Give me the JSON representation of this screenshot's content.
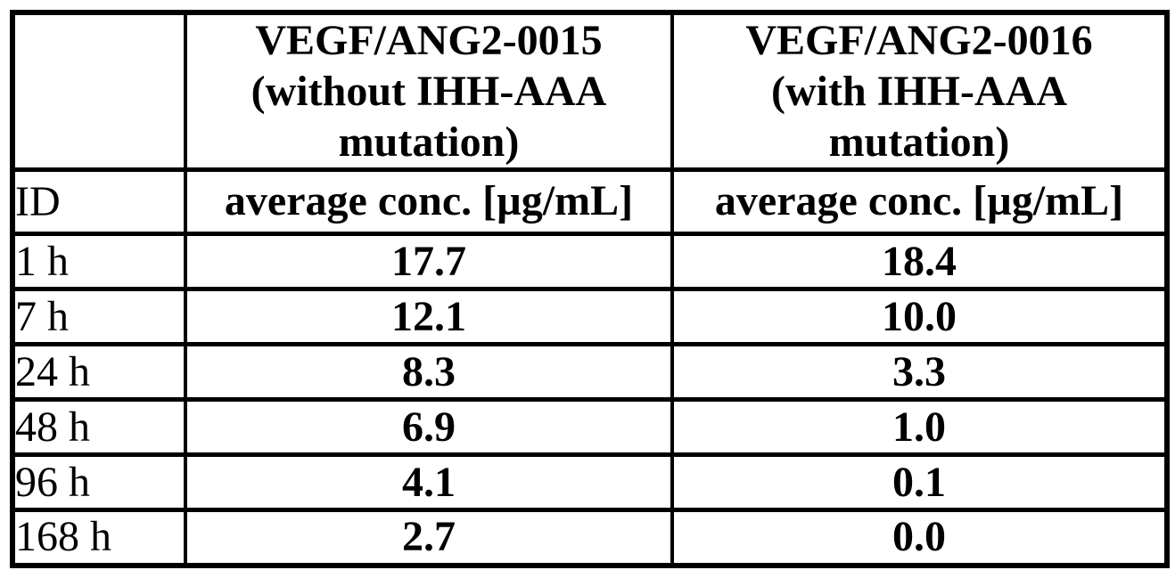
{
  "page": {
    "background_color": "#ffffff",
    "border_color": "#000000"
  },
  "table": {
    "header": {
      "corner": "",
      "col2_lines": [
        "VEGF/ANG2-0015",
        "(without IHH-AAA",
        "mutation)"
      ],
      "col3_lines": [
        "VEGF/ANG2-0016",
        "(with IHH-AAA",
        "mutation)"
      ],
      "id_label": "ID",
      "col2_unit": "average conc. [µg/mL]",
      "col3_unit": "average conc. [µg/mL]"
    },
    "rows": [
      {
        "id": "1 h",
        "v0015": "17.7",
        "v0016": "18.4"
      },
      {
        "id": "7 h",
        "v0015": "12.1",
        "v0016": "10.0"
      },
      {
        "id": "24 h",
        "v0015": "8.3",
        "v0016": "3.3"
      },
      {
        "id": "48 h",
        "v0015": "6.9",
        "v0016": "1.0"
      },
      {
        "id": "96 h",
        "v0015": "4.1",
        "v0016": "0.1"
      },
      {
        "id": "168 h",
        "v0015": "2.7",
        "v0016": "0.0"
      }
    ]
  }
}
